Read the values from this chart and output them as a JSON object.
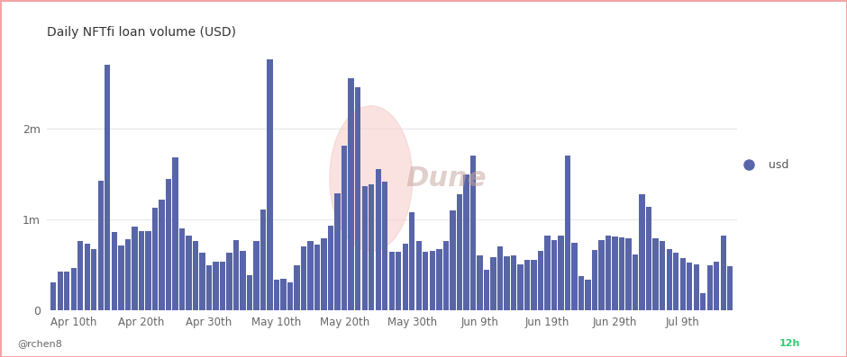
{
  "title": "Daily NFTfi loan volume (USD)",
  "bar_color": "#5865a8",
  "background_color": "#ffffff",
  "border_color": "#f4a4a4",
  "ytick_values": [
    0,
    1000000,
    2000000
  ],
  "ytick_labels": [
    "0",
    "1m",
    "2m"
  ],
  "ylim": [
    0,
    2900000
  ],
  "xtick_labels": [
    "Apr 10th",
    "Apr 20th",
    "Apr 30th",
    "May 10th",
    "May 20th",
    "May 30th",
    "Jun 9th",
    "Jun 19th",
    "Jun 29th",
    "Jul 9th"
  ],
  "legend_label": "usd",
  "legend_dot_color": "#5865a8",
  "watermark": "Dune",
  "author": "@rchen8",
  "time_label": "12h",
  "values": [
    310000,
    430000,
    430000,
    470000,
    760000,
    730000,
    680000,
    1430000,
    2700000,
    860000,
    710000,
    780000,
    920000,
    870000,
    870000,
    1130000,
    1220000,
    1450000,
    1680000,
    900000,
    820000,
    760000,
    640000,
    500000,
    540000,
    540000,
    640000,
    770000,
    660000,
    390000,
    760000,
    1110000,
    2760000,
    340000,
    350000,
    310000,
    500000,
    700000,
    760000,
    720000,
    790000,
    930000,
    1290000,
    1810000,
    2550000,
    2450000,
    1370000,
    1390000,
    1550000,
    1420000,
    650000,
    650000,
    730000,
    1080000,
    760000,
    650000,
    660000,
    680000,
    760000,
    1100000,
    1280000,
    1490000,
    1700000,
    610000,
    450000,
    590000,
    700000,
    600000,
    610000,
    510000,
    560000,
    560000,
    660000,
    820000,
    770000,
    820000,
    1700000,
    740000,
    380000,
    340000,
    670000,
    770000,
    820000,
    810000,
    800000,
    790000,
    620000,
    1280000,
    1140000,
    790000,
    760000,
    680000,
    640000,
    580000,
    530000,
    510000,
    190000,
    500000,
    540000,
    820000,
    490000
  ]
}
